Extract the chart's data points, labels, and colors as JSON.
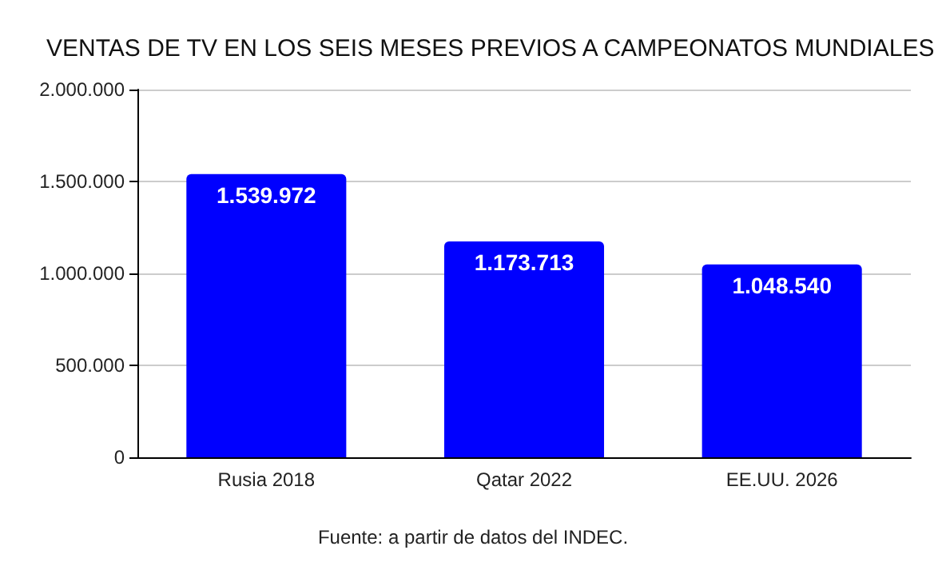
{
  "chart_data": {
    "type": "bar",
    "title": "VENTAS DE TV EN LOS SEIS MESES PREVIOS A CAMPEONATOS MUNDIALES",
    "categories": [
      "Rusia 2018",
      "Qatar 2022",
      "EE.UU. 2026"
    ],
    "values": [
      1539972,
      1173713,
      1048540
    ],
    "value_labels": [
      "1.539.972",
      "1.173.713",
      "1.048.540"
    ],
    "color": "#0000ff",
    "ylim": [
      0,
      2000000
    ],
    "yticks": [
      0,
      {
        "value": 500000,
        "label": "500.000"
      },
      {
        "value": 1000000,
        "label": "1.000.000"
      },
      {
        "value": 1500000,
        "label": "1.500.000"
      },
      {
        "value": 2000000,
        "label": "2.000.000"
      }
    ],
    "grid": "y",
    "annotations": [
      "Fuente: a partir de datos del INDEC."
    ]
  }
}
